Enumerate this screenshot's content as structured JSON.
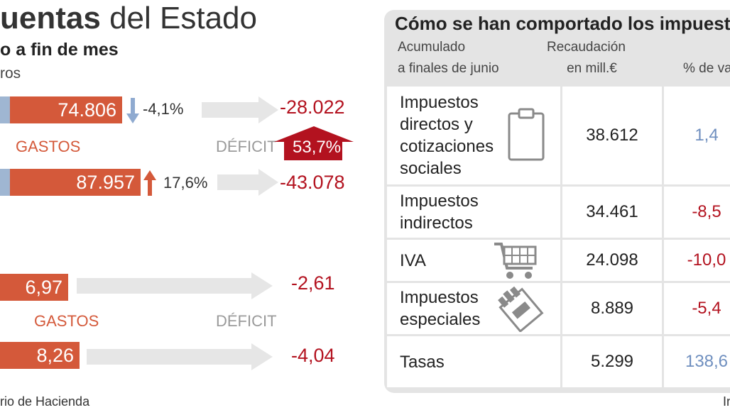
{
  "left": {
    "title_bold": "uentas",
    "title_rest": "del Estado",
    "subtitle": "o a fin de mes",
    "units": "ros",
    "source": "rio de Hacienda",
    "block1": {
      "row1": {
        "value": "74.806",
        "variation": "-4,1%",
        "deficit": "-28.022"
      },
      "label_gastos": "GASTOS",
      "label_deficit": "DÉFICIT",
      "deficit_change": "53,7%",
      "row2": {
        "value": "87.957",
        "variation": "17,6%",
        "deficit": "-43.078"
      }
    },
    "block2": {
      "row1": {
        "value": "6,97",
        "deficit": "-2,61"
      },
      "label_gastos": "GASTOS",
      "label_deficit": "DÉFICIT",
      "row2": {
        "value": "8,26",
        "deficit": "-4,04"
      }
    }
  },
  "right": {
    "title": "Cómo se han comportado los impuest",
    "header_col1_line1": "Acumulado",
    "header_col1_line2": "a finales de junio",
    "header_col2_line1": "Recaudación",
    "header_col2_line2": "en mill.€",
    "header_col3": "% de va",
    "note_bottom": "In"
  },
  "chart_data": [
    {
      "type": "bar",
      "series": [
        {
          "name": "GASTOS",
          "values": [
            74806,
            87957
          ]
        },
        {
          "name": "DÉFICIT",
          "values": [
            -28022,
            -43078
          ]
        }
      ],
      "variations": [
        "-4,1%",
        "17,6%"
      ],
      "deficit_change": "53,7%"
    },
    {
      "type": "bar",
      "series": [
        {
          "name": "GASTOS",
          "values": [
            6.97,
            8.26
          ]
        },
        {
          "name": "DÉFICIT",
          "values": [
            -2.61,
            -4.04
          ]
        }
      ]
    },
    {
      "type": "table",
      "rows": [
        {
          "label": "Impuestos directos y cotizaciones sociales",
          "recaudacion": "38.612",
          "variacion": "1,4",
          "variation_color": "#6f8fbf",
          "icon": "clipboard-icon"
        },
        {
          "label": "Impuestos indirectos",
          "recaudacion": "34.461",
          "variacion": "-8,5",
          "variation_color": "#b3121f",
          "icon": ""
        },
        {
          "label": "IVA",
          "recaudacion": "24.098",
          "variacion": "-10,0",
          "variation_color": "#b3121f",
          "icon": "shopping-cart-icon"
        },
        {
          "label": "Impuestos especiales",
          "recaudacion": "8.889",
          "variacion": "-5,4",
          "variation_color": "#b3121f",
          "icon": "cigarette-pack-icon"
        },
        {
          "label": "Tasas",
          "recaudacion": "5.299",
          "variacion": "138,6",
          "variation_color": "#6f8fbf",
          "icon": ""
        }
      ]
    }
  ],
  "colors": {
    "orange": "#d4593a",
    "blue_bar": "#9fb6d2",
    "red": "#b3121f",
    "blue_text": "#6f8fbf",
    "gray_arrow": "#e6e6e6",
    "panel": "#e4e4e4"
  }
}
